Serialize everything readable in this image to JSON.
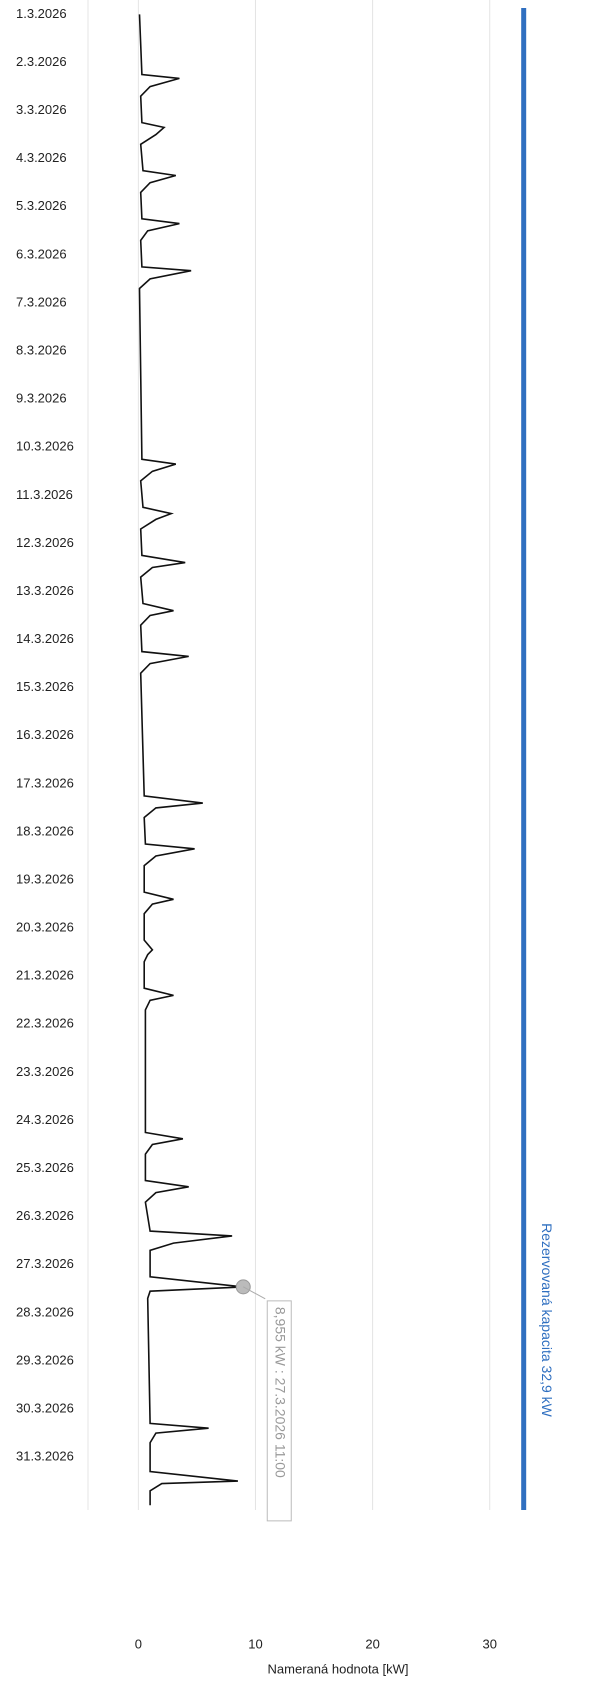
{
  "chart_data": {
    "type": "line",
    "orientation": "vertical",
    "xlabel": "Nameraná hodnota [kW]",
    "xlim": [
      -4.3,
      36
    ],
    "xticks": [
      0,
      10,
      20,
      30
    ],
    "ylim": [
      -0.3,
      31.1
    ],
    "yticks": [
      {
        "value": 0,
        "label": "1.3.2026"
      },
      {
        "value": 1,
        "label": "2.3.2026"
      },
      {
        "value": 2,
        "label": "3.3.2026"
      },
      {
        "value": 3,
        "label": "4.3.2026"
      },
      {
        "value": 4,
        "label": "5.3.2026"
      },
      {
        "value": 5,
        "label": "6.3.2026"
      },
      {
        "value": 6,
        "label": "7.3.2026"
      },
      {
        "value": 7,
        "label": "8.3.2026"
      },
      {
        "value": 8,
        "label": "9.3.2026"
      },
      {
        "value": 9,
        "label": "10.3.2026"
      },
      {
        "value": 10,
        "label": "11.3.2026"
      },
      {
        "value": 11,
        "label": "12.3.2026"
      },
      {
        "value": 12,
        "label": "13.3.2026"
      },
      {
        "value": 13,
        "label": "14.3.2026"
      },
      {
        "value": 14,
        "label": "15.3.2026"
      },
      {
        "value": 15,
        "label": "16.3.2026"
      },
      {
        "value": 16,
        "label": "17.3.2026"
      },
      {
        "value": 17,
        "label": "18.3.2026"
      },
      {
        "value": 18,
        "label": "19.3.2026"
      },
      {
        "value": 19,
        "label": "20.3.2026"
      },
      {
        "value": 20,
        "label": "21.3.2026"
      },
      {
        "value": 21,
        "label": "22.3.2026"
      },
      {
        "value": 22,
        "label": "23.3.2026"
      },
      {
        "value": 23,
        "label": "24.3.2026"
      },
      {
        "value": 24,
        "label": "25.3.2026"
      },
      {
        "value": 25,
        "label": "26.3.2026"
      },
      {
        "value": 26,
        "label": "27.3.2026"
      },
      {
        "value": 27,
        "label": "28.3.2026"
      },
      {
        "value": 28,
        "label": "29.3.2026"
      },
      {
        "value": 29,
        "label": "30.3.2026"
      },
      {
        "value": 30,
        "label": "31.3.2026"
      }
    ],
    "grid": true,
    "series": [
      {
        "color": "#111111",
        "t": [
          0,
          1.25,
          1.33,
          1.5,
          1.7,
          2.25,
          2.35,
          2.5,
          2.7,
          3.25,
          3.35,
          3.5,
          3.7,
          4.25,
          4.35,
          4.5,
          4.7,
          5.25,
          5.33,
          5.5,
          5.7,
          9.25,
          9.35,
          9.5,
          9.7,
          10.25,
          10.38,
          10.5,
          10.7,
          11.25,
          11.4,
          11.5,
          11.7,
          12.25,
          12.4,
          12.5,
          12.7,
          13.25,
          13.35,
          13.5,
          13.7,
          16.25,
          16.4,
          16.5,
          16.7,
          17.25,
          17.35,
          17.5,
          17.7,
          18.25,
          18.4,
          18.5,
          18.7,
          19.25,
          19.45,
          19.55,
          19.7,
          20.25,
          20.4,
          20.5,
          20.7,
          23.25,
          23.38,
          23.5,
          23.7,
          24.25,
          24.38,
          24.5,
          24.7,
          25.3,
          25.4,
          25.55,
          25.7,
          26.25,
          26.46,
          26.55,
          26.7,
          29.3,
          29.4,
          29.5,
          29.7,
          30.3,
          30.5,
          30.55,
          30.7,
          31.0
        ],
        "values": [
          0.1,
          0.3,
          3.5,
          1.0,
          0.2,
          0.3,
          2.2,
          1.5,
          0.2,
          0.4,
          3.2,
          1.0,
          0.2,
          0.3,
          3.5,
          0.8,
          0.2,
          0.3,
          4.5,
          1.0,
          0.1,
          0.3,
          3.2,
          1.2,
          0.2,
          0.4,
          2.8,
          1.5,
          0.2,
          0.3,
          4.0,
          1.2,
          0.2,
          0.4,
          3.0,
          1.0,
          0.2,
          0.3,
          4.3,
          1.0,
          0.2,
          0.5,
          5.5,
          1.5,
          0.5,
          0.6,
          4.8,
          1.5,
          0.5,
          0.5,
          3.0,
          1.2,
          0.5,
          0.5,
          1.2,
          0.8,
          0.5,
          0.5,
          3.0,
          1.0,
          0.6,
          0.6,
          3.8,
          1.2,
          0.6,
          0.6,
          4.3,
          1.5,
          0.6,
          1.0,
          8.0,
          3.0,
          1.0,
          1.0,
          8.955,
          1.0,
          0.8,
          1.0,
          6.0,
          1.5,
          1.0,
          1.0,
          8.5,
          2.0,
          1.0,
          1.0
        ]
      }
    ],
    "annotation": {
      "text": "8,955 kW : 27.3.2026 11:00",
      "point": 74
    },
    "reserve": {
      "value": 32.9,
      "label": "Rezervovaná kapacita 32,9 kW",
      "color": "#2f6fc0"
    }
  }
}
